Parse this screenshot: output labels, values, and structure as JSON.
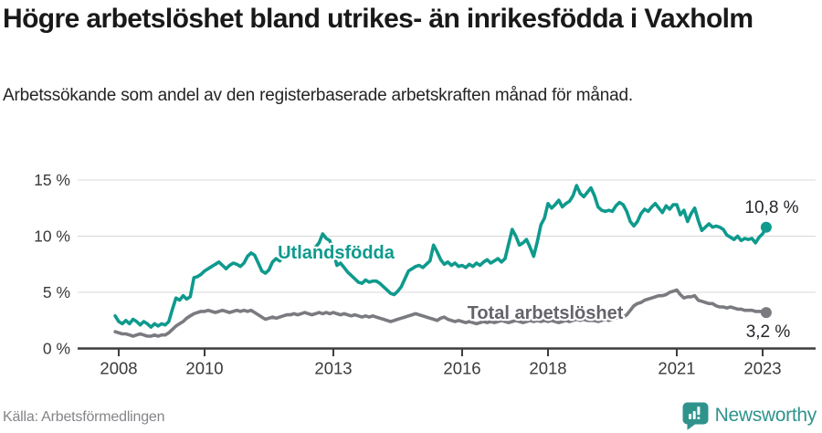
{
  "header": {
    "title": "Högre arbetslöshet bland utrikes- än inrikesfödda i Vaxholm",
    "subtitle": "Arbetssökande som andel av den registerbaserade arbetskraften månad för månad."
  },
  "chart_data": {
    "type": "line",
    "title": "Högre arbetslöshet bland utrikes- än inrikesfödda i Vaxholm",
    "frequency": "monthly",
    "x_start": 2007.9167,
    "x_end": 2023.0833,
    "xticks": [
      "2008",
      "2010",
      "2013",
      "2016",
      "2018",
      "2021",
      "2023"
    ],
    "xtick_years": [
      2008,
      2010,
      2013,
      2016,
      2018,
      2021,
      2023
    ],
    "yticks": [
      0,
      5,
      10,
      15
    ],
    "ytick_suffix": " %",
    "ylim": [
      0,
      16.5
    ],
    "xlim": [
      2007.0,
      2024.2
    ],
    "grid": "horizontal",
    "legend_position": "inline-labels",
    "series": [
      {
        "name": "Utlandsfödda",
        "color": "#0e9a8d",
        "end_label": "10,8 %",
        "end_value": 10.8,
        "values": [
          2.9,
          2.4,
          2.2,
          2.5,
          2.2,
          2.6,
          2.4,
          2.1,
          2.4,
          2.2,
          1.9,
          2.2,
          2.0,
          2.2,
          2.1,
          2.4,
          3.5,
          4.5,
          4.3,
          4.7,
          4.4,
          4.6,
          6.3,
          6.4,
          6.6,
          6.9,
          7.1,
          7.3,
          7.5,
          7.7,
          7.4,
          7.1,
          7.4,
          7.6,
          7.5,
          7.3,
          7.6,
          8.2,
          8.5,
          8.3,
          7.6,
          6.9,
          6.7,
          7.0,
          7.7,
          8.0,
          7.8,
          8.2,
          8.5,
          8.6,
          8.8,
          8.5,
          8.7,
          8.4,
          8.6,
          8.8,
          9.0,
          9.4,
          10.2,
          9.8,
          9.6,
          8.6,
          7.4,
          7.6,
          7.2,
          6.8,
          6.5,
          6.2,
          5.9,
          5.8,
          6.1,
          5.9,
          6.0,
          6.0,
          5.8,
          5.5,
          5.2,
          4.9,
          4.8,
          5.1,
          5.5,
          6.2,
          6.9,
          7.1,
          7.3,
          7.4,
          7.2,
          7.5,
          7.8,
          9.2,
          8.6,
          7.9,
          7.5,
          7.7,
          7.4,
          7.6,
          7.3,
          7.4,
          7.2,
          7.5,
          7.3,
          7.6,
          7.4,
          7.7,
          7.9,
          7.6,
          7.8,
          8.0,
          7.7,
          8.0,
          9.3,
          10.6,
          10.0,
          9.2,
          9.4,
          9.7,
          9.0,
          8.2,
          9.5,
          11.0,
          11.6,
          12.9,
          12.5,
          12.8,
          13.2,
          12.6,
          12.9,
          13.1,
          13.6,
          14.5,
          13.8,
          13.5,
          13.9,
          14.3,
          13.6,
          12.6,
          12.3,
          12.2,
          12.3,
          12.2,
          12.7,
          13.0,
          12.8,
          12.2,
          11.3,
          10.9,
          11.3,
          12.0,
          12.4,
          12.2,
          12.6,
          12.9,
          12.5,
          12.1,
          12.7,
          12.4,
          12.8,
          12.8,
          11.9,
          12.3,
          11.3,
          12.0,
          12.5,
          11.4,
          10.5,
          10.8,
          11.1,
          10.8,
          10.9,
          10.8,
          10.6,
          10.1,
          9.9,
          9.7,
          10.0,
          9.6,
          9.8,
          9.7,
          9.8,
          9.4,
          9.9,
          10.2,
          10.8
        ]
      },
      {
        "name": "Total arbetslöshet",
        "color": "#7a7b80",
        "end_label": "3,2 %",
        "end_value": 3.2,
        "values": [
          1.5,
          1.4,
          1.3,
          1.3,
          1.2,
          1.1,
          1.2,
          1.3,
          1.2,
          1.1,
          1.1,
          1.2,
          1.1,
          1.2,
          1.2,
          1.4,
          1.7,
          2.0,
          2.2,
          2.4,
          2.7,
          2.9,
          3.1,
          3.2,
          3.3,
          3.3,
          3.4,
          3.3,
          3.2,
          3.3,
          3.4,
          3.3,
          3.2,
          3.3,
          3.4,
          3.3,
          3.4,
          3.3,
          3.4,
          3.2,
          3.0,
          2.8,
          2.6,
          2.7,
          2.8,
          2.7,
          2.8,
          2.9,
          3.0,
          3.0,
          3.1,
          3.0,
          3.1,
          3.2,
          3.1,
          3.0,
          3.1,
          3.2,
          3.1,
          3.2,
          3.1,
          3.2,
          3.1,
          3.0,
          3.1,
          3.0,
          2.9,
          3.0,
          2.9,
          2.8,
          2.9,
          2.8,
          2.9,
          2.8,
          2.7,
          2.6,
          2.5,
          2.4,
          2.5,
          2.6,
          2.7,
          2.8,
          2.9,
          3.0,
          3.1,
          3.0,
          2.9,
          2.8,
          2.7,
          2.6,
          2.5,
          2.7,
          2.8,
          2.6,
          2.5,
          2.4,
          2.5,
          2.4,
          2.3,
          2.4,
          2.3,
          2.2,
          2.3,
          2.4,
          2.3,
          2.4,
          2.3,
          2.4,
          2.5,
          2.4,
          2.3,
          2.4,
          2.5,
          2.4,
          2.3,
          2.4,
          2.5,
          2.4,
          2.5,
          2.4,
          2.5,
          2.4,
          2.5,
          2.4,
          2.3,
          2.4,
          2.5,
          2.4,
          2.5,
          2.6,
          2.5,
          2.6,
          2.5,
          2.5,
          2.5,
          2.4,
          2.5,
          2.6,
          2.5,
          2.6,
          2.7,
          2.8,
          2.8,
          3.0,
          3.4,
          3.8,
          4.0,
          4.1,
          4.3,
          4.4,
          4.5,
          4.6,
          4.7,
          4.7,
          4.8,
          5.0,
          5.1,
          5.2,
          4.8,
          4.5,
          4.6,
          4.6,
          4.7,
          4.3,
          4.2,
          4.1,
          4.0,
          4.0,
          3.8,
          3.7,
          3.7,
          3.6,
          3.7,
          3.6,
          3.5,
          3.5,
          3.4,
          3.4,
          3.4,
          3.3,
          3.3,
          3.3,
          3.2
        ]
      }
    ]
  },
  "footer": {
    "source": "Källa: Arbetsförmedlingen",
    "brand": "Newsworthy"
  },
  "colors": {
    "accent_teal": "#0e9a8d",
    "line_gray": "#7a7b80",
    "series_label_gray": "#63636b",
    "grid": "#d8d8d8",
    "axis": "#3d3d3d",
    "axis_text": "#3a3a3a",
    "annotation_text": "#26262b",
    "title_text": "#191919",
    "source_text": "#85858a",
    "logo_teal": "#2f938c"
  }
}
